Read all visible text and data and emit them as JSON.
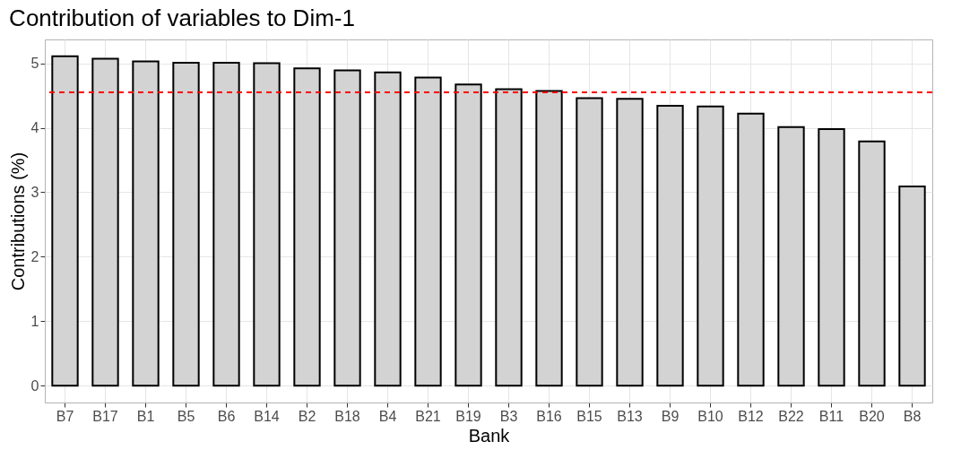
{
  "chart_data": {
    "type": "bar",
    "title": "Contribution of variables to Dim-1",
    "xlabel": "Bank",
    "ylabel": "Contributions (%)",
    "categories": [
      "B7",
      "B17",
      "B1",
      "B5",
      "B6",
      "B14",
      "B2",
      "B18",
      "B4",
      "B21",
      "B19",
      "B3",
      "B16",
      "B15",
      "B13",
      "B9",
      "B10",
      "B12",
      "B22",
      "B11",
      "B20",
      "B8"
    ],
    "values": [
      5.11,
      5.07,
      5.03,
      5.01,
      5.01,
      5.0,
      4.92,
      4.89,
      4.86,
      4.78,
      4.67,
      4.6,
      4.57,
      4.46,
      4.45,
      4.34,
      4.33,
      4.22,
      4.01,
      3.98,
      3.79,
      3.09
    ],
    "color": "#d3d3d3",
    "ylim": [
      -0.26,
      5.37
    ],
    "yticks": [
      0,
      1,
      2,
      3,
      4,
      5
    ],
    "grid": true,
    "ref_lines": [
      {
        "axis": "y",
        "value": 4.55,
        "color": "#ff0000",
        "line_style": "dashed"
      }
    ]
  }
}
